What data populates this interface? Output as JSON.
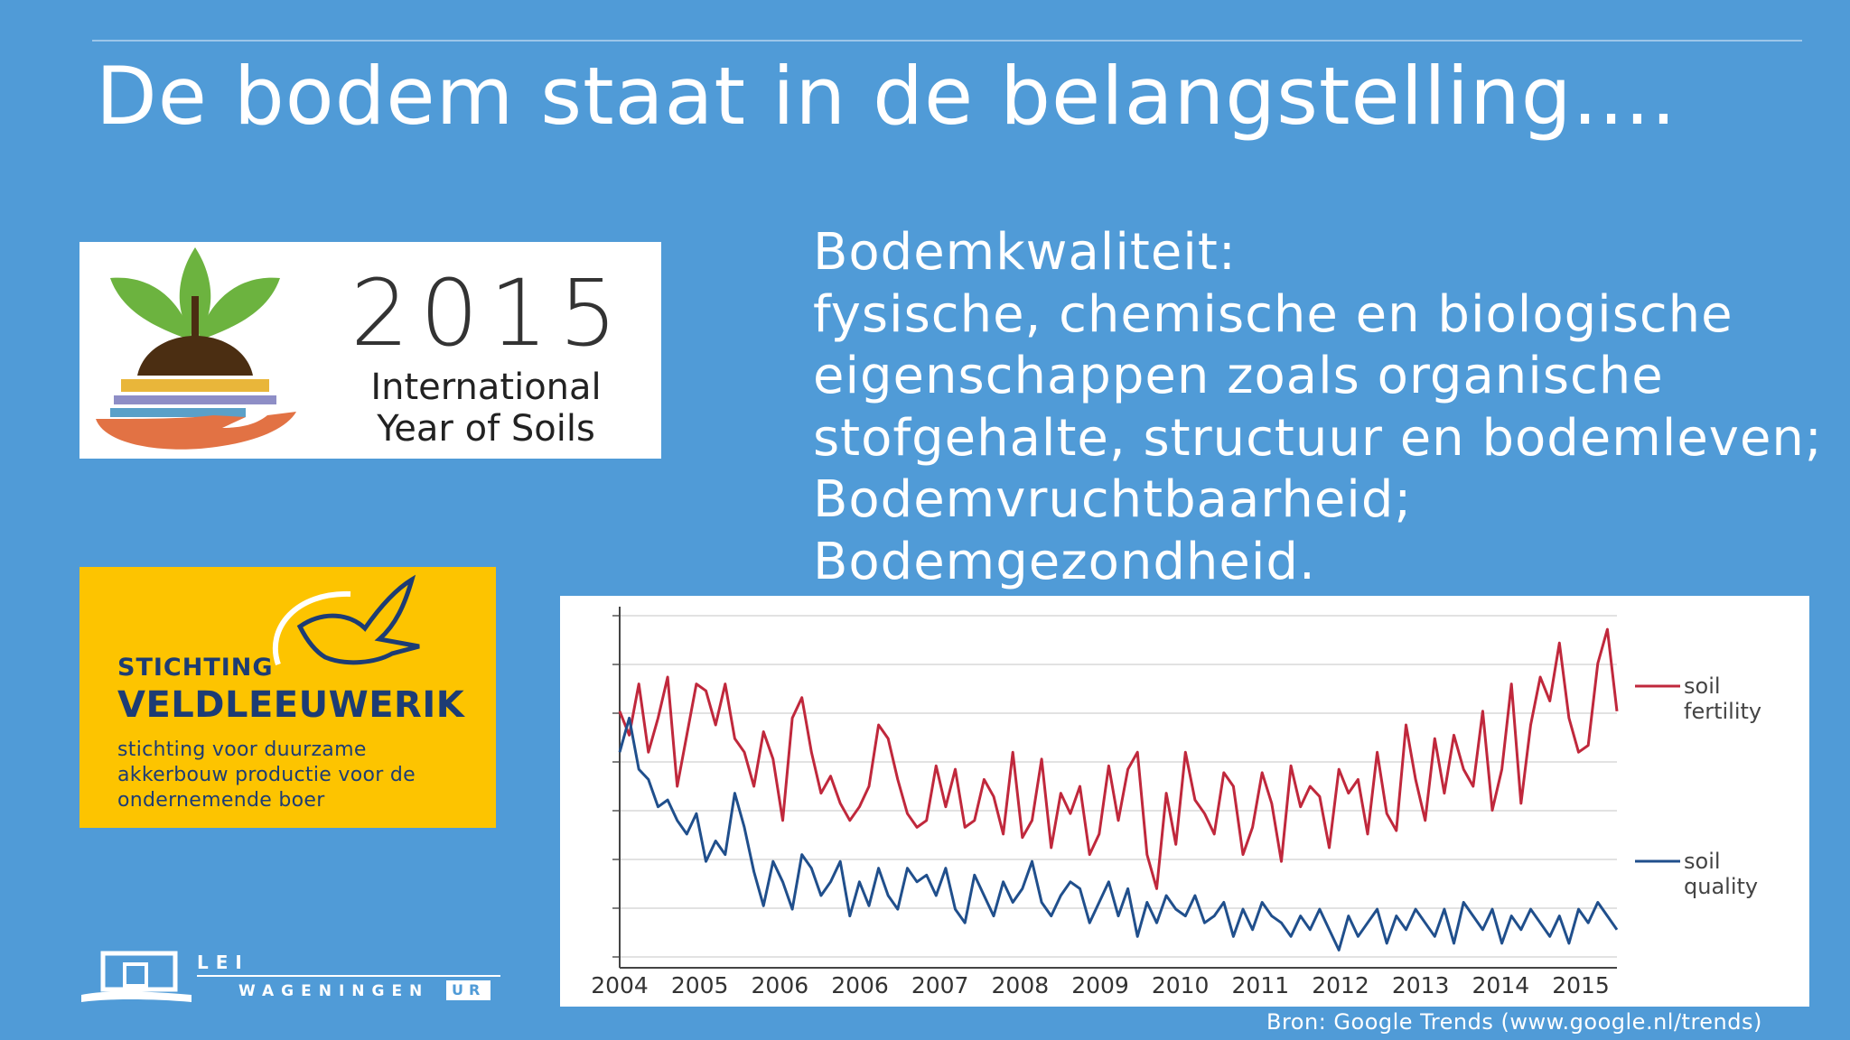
{
  "slide": {
    "title": "De bodem staat in de belangstelling....",
    "body_lines": [
      "Bodemkwaliteit:",
      "fysische, chemische en biologische",
      "eigenschappen zoals organische",
      "stofgehalte, structuur en bodemleven;",
      "Bodemvruchtbaarheid;",
      "Bodemgezondheid."
    ],
    "source": "Bron: Google Trends (www.google.nl/trends)"
  },
  "logo_iys": {
    "year": "2015",
    "line1": "International",
    "line2": "Year of Soils",
    "colors": {
      "leaf": "#6cb33f",
      "soil": "#4b2e12",
      "band1": "#e9b63a",
      "band2": "#8e8ec6",
      "band3": "#5aa0c8",
      "hand": "#e27244"
    }
  },
  "logo_veldleeuwerik": {
    "line1": "STICHTING",
    "line2": "VELDLEEUWERIK",
    "tagline": [
      "stichting voor duurzame",
      "akkerbouw productie voor de",
      "ondernemende boer"
    ],
    "colors": {
      "bg": "#fdc400",
      "text": "#1d3c74"
    }
  },
  "logo_lei": {
    "line1": "LEI",
    "line2": "WAGENINGEN",
    "badge": "UR"
  },
  "chart_data": {
    "type": "line",
    "title": "",
    "xlabel": "",
    "ylabel": "",
    "ylim": [
      0,
      100
    ],
    "x_ticks": [
      "2004",
      "2005",
      "2006",
      "2006",
      "2007",
      "2008",
      "2009",
      "2010",
      "2011",
      "2012",
      "2013",
      "2014",
      "2015"
    ],
    "grid": true,
    "legend_position": "right",
    "series": [
      {
        "name": "soil fertility",
        "legend_line1": "soil",
        "legend_line2": "fertility",
        "color": "#c0283c",
        "values": [
          72,
          65,
          80,
          60,
          70,
          82,
          50,
          65,
          80,
          78,
          68,
          80,
          64,
          60,
          50,
          66,
          58,
          40,
          70,
          76,
          60,
          48,
          53,
          45,
          40,
          44,
          50,
          68,
          64,
          52,
          42,
          38,
          40,
          56,
          44,
          55,
          38,
          40,
          52,
          47,
          36,
          60,
          35,
          40,
          58,
          32,
          48,
          42,
          50,
          30,
          36,
          56,
          40,
          55,
          60,
          30,
          20,
          48,
          33,
          60,
          46,
          42,
          36,
          54,
          50,
          30,
          38,
          54,
          45,
          28,
          56,
          44,
          50,
          47,
          32,
          55,
          48,
          52,
          36,
          60,
          42,
          37,
          68,
          52,
          40,
          64,
          48,
          65,
          55,
          50,
          72,
          43,
          55,
          80,
          45,
          68,
          82,
          75,
          92,
          70,
          60,
          62,
          86,
          96,
          72
        ]
      },
      {
        "name": "soil quality",
        "legend_line1": "soil",
        "legend_line2": "quality",
        "color": "#204f8c",
        "values": [
          60,
          70,
          55,
          52,
          44,
          46,
          40,
          36,
          42,
          28,
          34,
          30,
          48,
          38,
          25,
          15,
          28,
          22,
          14,
          30,
          26,
          18,
          22,
          28,
          12,
          22,
          15,
          26,
          18,
          14,
          26,
          22,
          24,
          18,
          26,
          14,
          10,
          24,
          18,
          12,
          22,
          16,
          20,
          28,
          16,
          12,
          18,
          22,
          20,
          10,
          16,
          22,
          12,
          20,
          6,
          16,
          10,
          18,
          14,
          12,
          18,
          10,
          12,
          16,
          6,
          14,
          8,
          16,
          12,
          10,
          6,
          12,
          8,
          14,
          8,
          2,
          12,
          6,
          10,
          14,
          4,
          12,
          8,
          14,
          10,
          6,
          14,
          4,
          16,
          12,
          8,
          14,
          4,
          12,
          8,
          14,
          10,
          6,
          12,
          4,
          14,
          10,
          16,
          12,
          8
        ]
      }
    ]
  }
}
